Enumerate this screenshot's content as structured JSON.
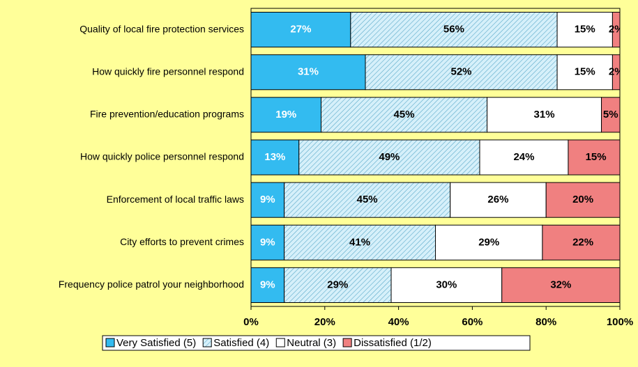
{
  "chart_data": {
    "type": "stacked-barh",
    "categories": [
      "Quality of local fire protection services",
      "How quickly fire personnel respond",
      "Fire prevention/education programs",
      "How quickly police personnel respond",
      "Enforcement of local traffic laws",
      "City efforts to prevent crimes",
      "Frequency police patrol your neighborhood"
    ],
    "series": [
      {
        "name": "Very Satisfied (5)",
        "color": "#33BBF0",
        "values": [
          27,
          31,
          19,
          13,
          9,
          9,
          9
        ],
        "value_labels": [
          "27%",
          "31%",
          "19%",
          "13%",
          "9%",
          "9%",
          "9%"
        ]
      },
      {
        "name": "Satisfied (4)",
        "color": "#B3E3F5",
        "values": [
          56,
          52,
          45,
          49,
          45,
          41,
          29
        ],
        "value_labels": [
          "56%",
          "52%",
          "45%",
          "49%",
          "45%",
          "41%",
          "29%"
        ]
      },
      {
        "name": "Neutral (3)",
        "color": "#FFFFFF",
        "values": [
          15,
          15,
          31,
          24,
          26,
          29,
          30
        ],
        "value_labels": [
          "15%",
          "15%",
          "31%",
          "24%",
          "26%",
          "29%",
          "30%"
        ]
      },
      {
        "name": "Dissatisfied (1/2)",
        "color": "#F08080",
        "values": [
          2,
          2,
          5,
          15,
          20,
          22,
          32
        ],
        "value_labels": [
          "2%",
          "2%",
          "5%",
          "15%",
          "20%",
          "22%",
          "32%"
        ]
      }
    ],
    "xlim": [
      0,
      100
    ],
    "xticks": [
      {
        "value": 0,
        "label": "0%"
      },
      {
        "value": 20,
        "label": "20%"
      },
      {
        "value": 40,
        "label": "40%"
      },
      {
        "value": 60,
        "label": "60%"
      },
      {
        "value": 80,
        "label": "80%"
      },
      {
        "value": 100,
        "label": "100%"
      }
    ]
  }
}
